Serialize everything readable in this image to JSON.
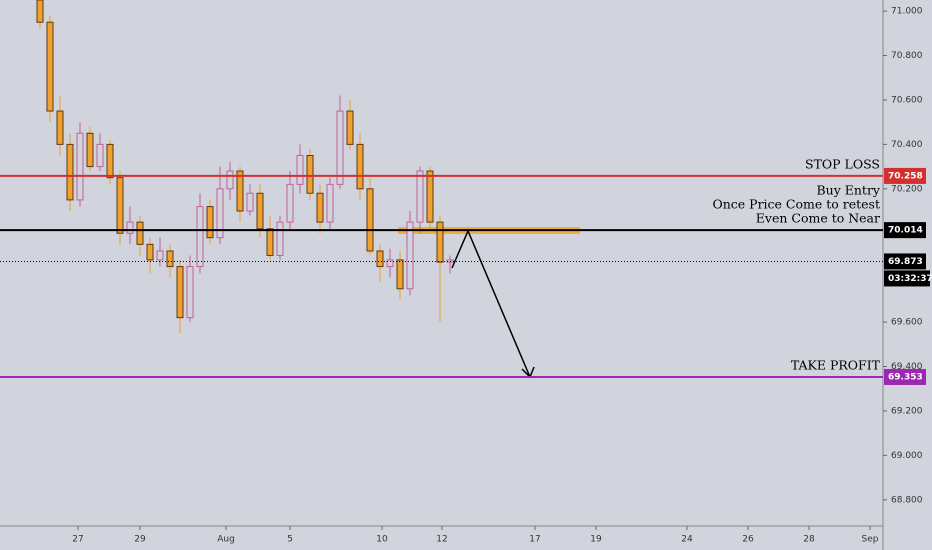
{
  "chart_data": {
    "type": "candlestick",
    "x": [
      8,
      10,
      12,
      14,
      16,
      18,
      20,
      22,
      24,
      26,
      28,
      30,
      32,
      34,
      36,
      38,
      40,
      42,
      44,
      46,
      48,
      50,
      52,
      54,
      56,
      58,
      60,
      62,
      64,
      66,
      68,
      70,
      72,
      74,
      76,
      78,
      80,
      82,
      84,
      86,
      88,
      90
    ],
    "open": [
      71.05,
      70.95,
      70.55,
      70.4,
      70.15,
      70.45,
      70.3,
      70.4,
      70.25,
      70.0,
      70.05,
      69.95,
      69.88,
      69.92,
      69.85,
      69.62,
      69.85,
      70.12,
      69.98,
      70.2,
      70.28,
      70.1,
      70.18,
      70.02,
      69.9,
      70.05,
      70.22,
      70.35,
      70.18,
      70.05,
      70.22,
      70.55,
      70.4,
      70.2,
      69.92,
      69.85,
      69.88,
      69.75,
      70.05,
      70.28,
      70.05,
      69.87
    ],
    "high": [
      71.1,
      70.98,
      70.62,
      70.45,
      70.5,
      70.48,
      70.45,
      70.42,
      70.28,
      70.12,
      70.08,
      69.98,
      69.98,
      69.95,
      69.88,
      69.9,
      70.18,
      70.15,
      70.3,
      70.32,
      70.3,
      70.22,
      70.22,
      70.08,
      70.08,
      70.28,
      70.4,
      70.38,
      70.22,
      70.25,
      70.62,
      70.6,
      70.45,
      70.25,
      69.95,
      69.93,
      69.92,
      70.1,
      70.3,
      70.3,
      70.08,
      69.9
    ],
    "low": [
      70.92,
      70.5,
      70.35,
      70.1,
      70.12,
      70.28,
      70.28,
      70.22,
      69.95,
      69.95,
      69.9,
      69.82,
      69.85,
      69.8,
      69.55,
      69.6,
      69.82,
      69.95,
      69.95,
      70.15,
      70.05,
      70.08,
      69.98,
      69.88,
      69.88,
      70.02,
      70.18,
      70.15,
      70.0,
      70.02,
      70.2,
      70.38,
      70.15,
      69.9,
      69.78,
      69.8,
      69.7,
      69.72,
      70.0,
      70.02,
      69.6,
      69.82
    ],
    "close": [
      70.95,
      70.55,
      70.4,
      70.15,
      70.45,
      70.3,
      70.4,
      70.25,
      70.0,
      70.05,
      69.95,
      69.88,
      69.92,
      69.85,
      69.62,
      69.85,
      70.12,
      69.98,
      70.2,
      70.28,
      70.1,
      70.18,
      70.02,
      69.9,
      70.05,
      70.22,
      70.35,
      70.18,
      70.05,
      70.22,
      70.55,
      70.4,
      70.2,
      69.92,
      69.85,
      69.88,
      69.75,
      70.05,
      70.28,
      70.05,
      69.87,
      69.88
    ],
    "up_color": "#c2609c",
    "down_color": "#f0a030",
    "xlim": [
      0,
      176
    ],
    "xticks": [
      {
        "value": 15.6,
        "label": "27"
      },
      {
        "value": 28,
        "label": "29"
      },
      {
        "value": 45.2,
        "label": "Aug"
      },
      {
        "value": 58,
        "label": "5"
      },
      {
        "value": 76.4,
        "label": "10"
      },
      {
        "value": 88.4,
        "label": "12"
      },
      {
        "value": 107,
        "label": "17"
      },
      {
        "value": 119.2,
        "label": "19"
      },
      {
        "value": 137.4,
        "label": "24"
      },
      {
        "value": 149.6,
        "label": "26"
      },
      {
        "value": 161.8,
        "label": "28"
      },
      {
        "value": 174,
        "label": "Sep"
      }
    ],
    "ylim": [
      68.7,
      71.05
    ],
    "yticks": [
      {
        "value": 71,
        "label": "71.000"
      },
      {
        "value": 70.8,
        "label": "70.800"
      },
      {
        "value": 70.6,
        "label": "70.600"
      },
      {
        "value": 70.4,
        "label": "70.400"
      },
      {
        "value": 70.2,
        "label": "70.200"
      },
      {
        "value": 69.6,
        "label": "69.600"
      },
      {
        "value": 69.4,
        "label": "69.400"
      },
      {
        "value": 69.2,
        "label": "69.200"
      },
      {
        "value": 69,
        "label": "69.000"
      },
      {
        "value": 68.8,
        "label": "68.800"
      }
    ],
    "levels": [
      {
        "value": 70.258,
        "color": "#d32f2f",
        "annotation": [
          "STOP LOSS"
        ]
      },
      {
        "value": 70.014,
        "color": "#000000",
        "annotation": [
          "Buy Entry",
          "Once Price Come to retest",
          "Even Come to Near"
        ]
      },
      {
        "value": 69.873,
        "color": "#000000",
        "style": "dotted",
        "countdown": "03:32:37"
      },
      {
        "value": 69.353,
        "color": "#9c27b0",
        "annotation": [
          "TAKE PROFIT"
        ]
      }
    ]
  }
}
